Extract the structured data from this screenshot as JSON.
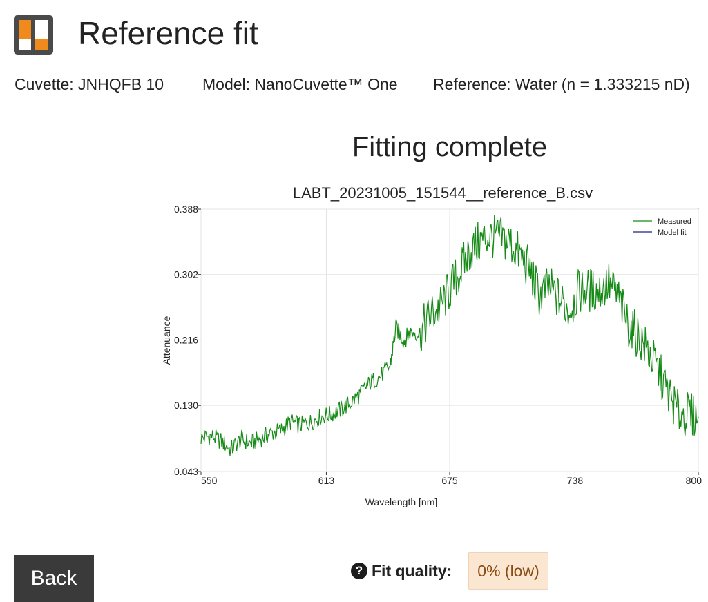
{
  "header": {
    "logo_icon": "brand-logo-icon",
    "title": "Reference fit"
  },
  "meta": {
    "cuvette": "Cuvette: JNHQFB 10",
    "model": "Model: NanoCuvette™ One",
    "reference": "Reference: Water (n = 1.333215 nD)"
  },
  "status": {
    "title": "Fitting complete"
  },
  "chart_data": {
    "type": "line",
    "title": "LABT_20231005_151544__reference_B.csv",
    "xlabel": "Wavelength [nm]",
    "ylabel": "Attenuance",
    "xlim": [
      550,
      800
    ],
    "ylim": [
      0.043,
      0.388
    ],
    "x_ticks": [
      "550",
      "613",
      "675",
      "738",
      "800"
    ],
    "y_ticks": [
      "0.388",
      "0.302",
      "0.216",
      "0.130",
      "0.043"
    ],
    "grid": true,
    "legend_position": "top-right",
    "series": [
      {
        "name": "Measured",
        "color": "#168a16",
        "x": [
          550,
          555,
          560,
          565,
          570,
          575,
          580,
          585,
          590,
          595,
          600,
          605,
          610,
          615,
          620,
          625,
          630,
          635,
          640,
          645,
          648,
          652,
          655,
          660,
          665,
          670,
          675,
          680,
          685,
          690,
          695,
          700,
          705,
          710,
          715,
          720,
          725,
          730,
          735,
          740,
          745,
          750,
          755,
          760,
          765,
          770,
          775,
          780,
          785,
          790,
          795,
          800
        ],
        "values": [
          0.087,
          0.09,
          0.083,
          0.072,
          0.085,
          0.08,
          0.086,
          0.093,
          0.097,
          0.108,
          0.104,
          0.108,
          0.115,
          0.118,
          0.124,
          0.133,
          0.145,
          0.16,
          0.168,
          0.182,
          0.232,
          0.215,
          0.226,
          0.225,
          0.248,
          0.258,
          0.282,
          0.305,
          0.332,
          0.345,
          0.352,
          0.35,
          0.345,
          0.328,
          0.31,
          0.275,
          0.285,
          0.27,
          0.255,
          0.28,
          0.282,
          0.28,
          0.29,
          0.27,
          0.235,
          0.22,
          0.2,
          0.175,
          0.145,
          0.12,
          0.118,
          0.115
        ]
      },
      {
        "name": "Model fit",
        "color": "#1f1f8a",
        "x": [],
        "values": []
      }
    ]
  },
  "fit": {
    "label": "Fit quality:",
    "value": "0% (low)",
    "help_icon": "help-icon",
    "help_glyph": "?"
  },
  "back_label": "Back"
}
